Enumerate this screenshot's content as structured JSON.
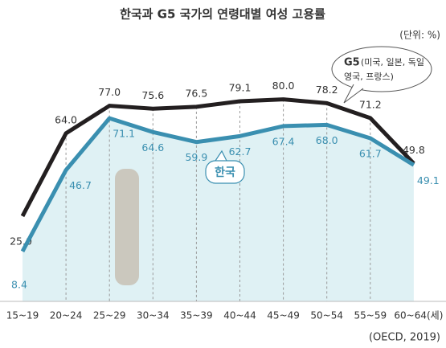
{
  "chart_data": {
    "type": "line",
    "title": "한국과 G5 국가의 연령대별 여성 고용률",
    "unit": "(단위: %)",
    "source": "(OECD, 2019)",
    "categories": [
      "15~19",
      "20~24",
      "25~29",
      "30~34",
      "35~39",
      "40~44",
      "45~49",
      "50~54",
      "55~59",
      "60~64(세)"
    ],
    "series": [
      {
        "name": "G5",
        "color": "#231f20",
        "values": [
          25.0,
          64.0,
          77.0,
          75.6,
          76.5,
          79.1,
          80.0,
          78.2,
          71.2,
          49.8
        ],
        "value_labels": [
          "25.0",
          "64.0",
          "77.0",
          "75.6",
          "76.5",
          "79.1",
          "80.0",
          "78.2",
          "71.2",
          "49.8"
        ],
        "annotation": [
          "(미국, 일본, 독일",
          "영국, 프랑스)"
        ]
      },
      {
        "name": "한국",
        "color": "#3a8fb0",
        "area_color": "#dff1f4",
        "values": [
          8.4,
          46.7,
          71.1,
          64.6,
          59.9,
          62.7,
          67.4,
          68.0,
          61.7,
          49.1
        ],
        "value_labels": [
          "8.4",
          "46.7",
          "71.1",
          "64.6",
          "59.9",
          "62.7",
          "67.4",
          "68.0",
          "61.7",
          "49.1"
        ]
      }
    ],
    "ylim": [
      0,
      95
    ]
  }
}
